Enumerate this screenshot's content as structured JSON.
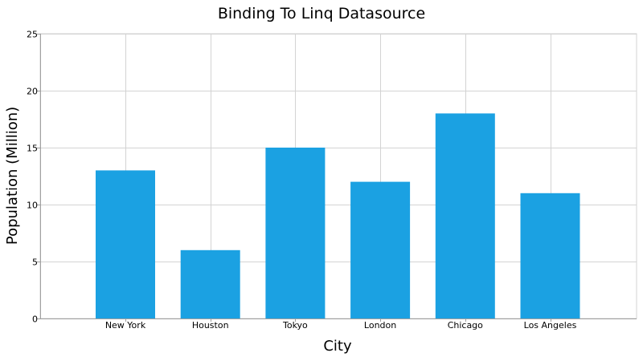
{
  "chart_data": {
    "type": "bar",
    "title": "Binding To Linq Datasource",
    "xlabel": "City",
    "ylabel": "Population (Million)",
    "categories": [
      "New York",
      "Houston",
      "Tokyo",
      "London",
      "Chicago",
      "Los Angeles"
    ],
    "values": [
      13,
      6,
      15,
      12,
      18,
      11
    ],
    "ylim": [
      0,
      25
    ],
    "yticks": [
      0,
      5,
      10,
      15,
      20,
      25
    ],
    "grid": true,
    "legend": "none",
    "bar_color": "#1ba1e2",
    "grid_color": "#d3d3d3",
    "axis_color": "#a0a0a0"
  }
}
